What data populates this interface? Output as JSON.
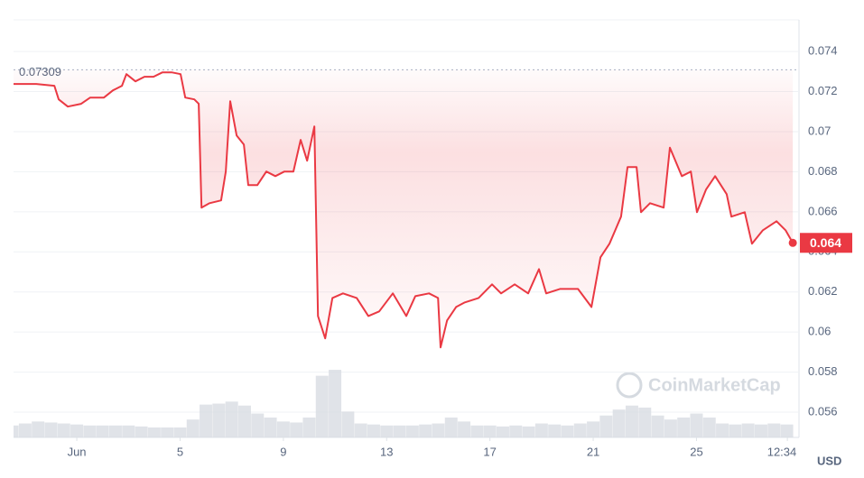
{
  "chart_data": {
    "type": "line",
    "x": [
      -1.45,
      -0.57,
      0.13,
      0.3,
      0.65,
      1.17,
      1.52,
      2.05,
      2.4,
      2.75,
      2.92,
      3.27,
      3.62,
      3.97,
      4.32,
      4.67,
      5.02,
      5.2,
      5.55,
      5.72,
      5.83,
      6.14,
      6.59,
      6.77,
      6.94,
      7.19,
      7.47,
      7.64,
      7.99,
      8.34,
      8.69,
      9.04,
      9.39,
      9.67,
      9.92,
      10.2,
      10.34,
      10.62,
      10.9,
      11.31,
      11.84,
      12.29,
      12.71,
      13.24,
      13.76,
      14.11,
      14.64,
      14.99,
      15.09,
      15.34,
      15.69,
      16.03,
      16.56,
      17.08,
      17.43,
      17.96,
      18.48,
      18.9,
      19.18,
      19.71,
      20.41,
      20.93,
      21.28,
      21.63,
      22.08,
      22.33,
      22.68,
      22.85,
      23.2,
      23.73,
      23.97,
      24.43,
      24.78,
      25.02,
      25.37,
      25.72,
      26.17,
      26.35,
      26.87,
      27.15,
      27.57,
      28.1,
      28.45,
      28.73
    ],
    "series": [
      {
        "name": "Price",
        "color": "#ea3943",
        "values": [
          0.07238,
          0.07238,
          0.07229,
          0.07161,
          0.07125,
          0.07139,
          0.0717,
          0.0717,
          0.07206,
          0.07229,
          0.07287,
          0.07251,
          0.07274,
          0.07274,
          0.07296,
          0.07296,
          0.07287,
          0.0717,
          0.07161,
          0.07139,
          0.06621,
          0.06643,
          0.06657,
          0.06801,
          0.07152,
          0.06981,
          0.06936,
          0.06733,
          0.06733,
          0.06801,
          0.06778,
          0.06801,
          0.06801,
          0.06959,
          0.06855,
          0.07026,
          0.0608,
          0.05968,
          0.0617,
          0.06193,
          0.0617,
          0.0608,
          0.06103,
          0.06193,
          0.0608,
          0.06179,
          0.06193,
          0.0617,
          0.05923,
          0.06058,
          0.06125,
          0.06148,
          0.0617,
          0.06238,
          0.06193,
          0.06238,
          0.06193,
          0.06314,
          0.06193,
          0.06215,
          0.06215,
          0.06125,
          0.06373,
          0.06441,
          0.06576,
          0.06823,
          0.06823,
          0.06598,
          0.06643,
          0.06621,
          0.0692,
          0.06778,
          0.06801,
          0.06598,
          0.06711,
          0.06778,
          0.06688,
          0.06576,
          0.06598,
          0.06441,
          0.06508,
          0.06553,
          0.06508,
          0.06445
        ]
      }
    ],
    "volume": {
      "x": [
        -1.5,
        -1,
        -0.5,
        0,
        0.5,
        1,
        1.5,
        2,
        2.5,
        3,
        3.5,
        4,
        4.5,
        5,
        5.5,
        6,
        6.5,
        7,
        7.5,
        8,
        8.5,
        9,
        9.5,
        10,
        10.5,
        11,
        11.5,
        12,
        12.5,
        13,
        13.5,
        14,
        14.5,
        15,
        15.5,
        16,
        16.5,
        17,
        17.5,
        18,
        18.5,
        19,
        19.5,
        20,
        20.5,
        21,
        21.5,
        22,
        22.5,
        23,
        23.5,
        24,
        24.5,
        25,
        25.5,
        26,
        26.5,
        27,
        27.5,
        28,
        28.5
      ],
      "values": [
        12,
        14,
        16,
        15,
        14,
        13,
        12,
        12,
        12,
        12,
        11,
        10,
        10,
        10,
        18,
        33,
        34,
        36,
        32,
        24,
        20,
        16,
        15,
        20,
        62,
        68,
        26,
        14,
        13,
        12,
        12,
        12,
        13,
        14,
        20,
        16,
        12,
        12,
        11,
        12,
        11,
        14,
        13,
        12,
        14,
        16,
        22,
        28,
        32,
        30,
        22,
        18,
        20,
        24,
        20,
        14,
        13,
        14,
        13,
        14,
        13
      ]
    },
    "xlim": [
      -1.45,
      28.97
    ],
    "ylim": [
      0.05474,
      0.07558
    ],
    "xticks": [
      {
        "value": 1,
        "label": "Jun"
      },
      5,
      9,
      13,
      17,
      21,
      25,
      {
        "value": 28.52,
        "label": "12:34"
      }
    ],
    "yticks": [
      0.056,
      0.058,
      0.06,
      0.062,
      0.064,
      0.066,
      0.068,
      0.07,
      0.072,
      0.074
    ],
    "y_axis_label": "USD",
    "max_annotation": {
      "value": 0.07309,
      "label": "0.07309"
    },
    "last_price_label": "0.064",
    "watermark": "CoinMarketCap",
    "grid": true
  }
}
